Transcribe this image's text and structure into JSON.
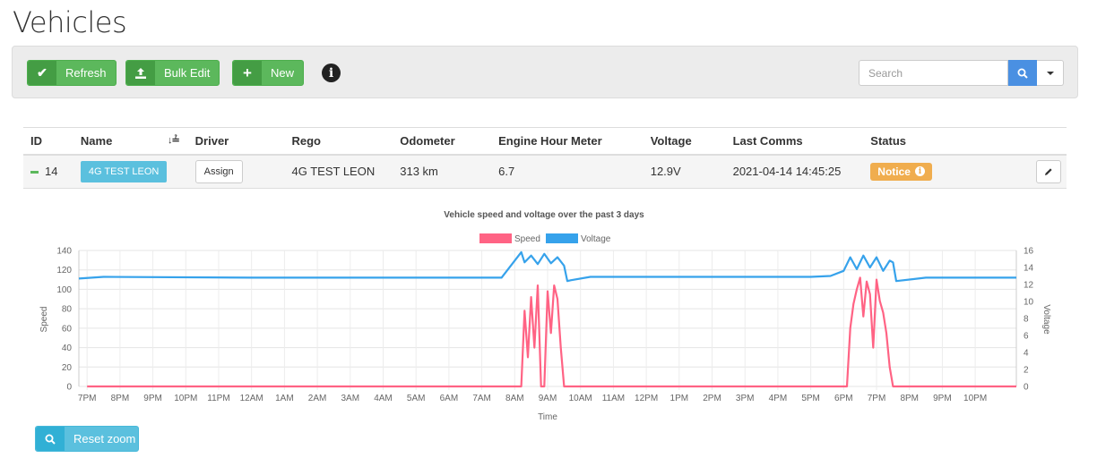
{
  "page": {
    "title": "Vehicles"
  },
  "toolbar": {
    "refresh_label": "Refresh",
    "bulk_edit_label": "Bulk Edit",
    "new_label": "New",
    "search_placeholder": "Search"
  },
  "table": {
    "headers": [
      "ID",
      "Name",
      "Driver",
      "Rego",
      "Odometer",
      "Engine Hour Meter",
      "Voltage",
      "Last Comms",
      "Status"
    ],
    "row": {
      "id": "14",
      "name": "4G TEST LEON",
      "driver_action": "Assign",
      "rego": "4G TEST LEON",
      "odometer": "313 km",
      "engine_hours": "6.7",
      "voltage": "12.9V",
      "last_comms": "2021-04-14 14:45:25",
      "status": "Notice",
      "status_color": "#f0ad4e"
    }
  },
  "chart_data": {
    "type": "line",
    "title": "Vehicle speed and voltage over the past 3 days",
    "xlabel": "Time",
    "ylabel": "Speed",
    "y2label": "Voltage",
    "ylim": [
      0,
      140
    ],
    "y2lim": [
      0,
      16
    ],
    "legend_position": "top",
    "grid": true,
    "x_ticks": [
      "7PM",
      "8PM",
      "9PM",
      "10PM",
      "11PM",
      "12AM",
      "1AM",
      "2AM",
      "3AM",
      "4AM",
      "5AM",
      "6AM",
      "7AM",
      "8AM",
      "9AM",
      "10AM",
      "11AM",
      "12PM",
      "1PM",
      "2PM",
      "3PM",
      "4PM",
      "5PM",
      "6PM",
      "7PM",
      "8PM",
      "9PM",
      "10PM"
    ],
    "x_range_hours": [
      -0.25,
      28.25
    ],
    "series": [
      {
        "name": "Speed",
        "axis": "left",
        "color": "#ff6384",
        "x": [
          0,
          13.0,
          13.2,
          13.3,
          13.4,
          13.5,
          13.6,
          13.7,
          13.8,
          13.9,
          14.0,
          14.1,
          14.2,
          14.3,
          14.4,
          14.5,
          14.6,
          23.0,
          23.1,
          23.2,
          23.3,
          23.4,
          23.5,
          23.6,
          23.7,
          23.8,
          23.9,
          24.0,
          24.1,
          24.2,
          24.3,
          24.4,
          24.5,
          28.25
        ],
        "y": [
          0,
          0,
          0,
          78,
          30,
          92,
          40,
          104,
          0,
          0,
          98,
          55,
          104,
          90,
          40,
          0,
          0,
          0,
          0,
          60,
          85,
          100,
          112,
          72,
          108,
          95,
          40,
          110,
          88,
          76,
          55,
          20,
          0,
          0
        ]
      },
      {
        "name": "Voltage",
        "axis": "right",
        "color": "#36a2eb",
        "x": [
          -0.25,
          0.5,
          5.0,
          12.0,
          12.6,
          13.2,
          13.3,
          13.5,
          13.7,
          13.9,
          14.1,
          14.3,
          14.5,
          14.6,
          14.7,
          15.3,
          22.0,
          22.6,
          23.0,
          23.2,
          23.4,
          23.6,
          23.8,
          24.0,
          24.2,
          24.4,
          24.5,
          24.6,
          25.5,
          28.25
        ],
        "y": [
          12.7,
          12.9,
          12.8,
          12.8,
          12.8,
          15.8,
          14.6,
          15.4,
          14.4,
          15.6,
          14.5,
          15.2,
          14.2,
          12.4,
          12.5,
          12.9,
          12.9,
          13.0,
          13.6,
          15.2,
          13.8,
          15.4,
          14.0,
          15.2,
          13.6,
          14.8,
          14.6,
          12.4,
          12.8,
          12.8
        ]
      }
    ]
  },
  "reset_zoom_label": "Reset zoom"
}
